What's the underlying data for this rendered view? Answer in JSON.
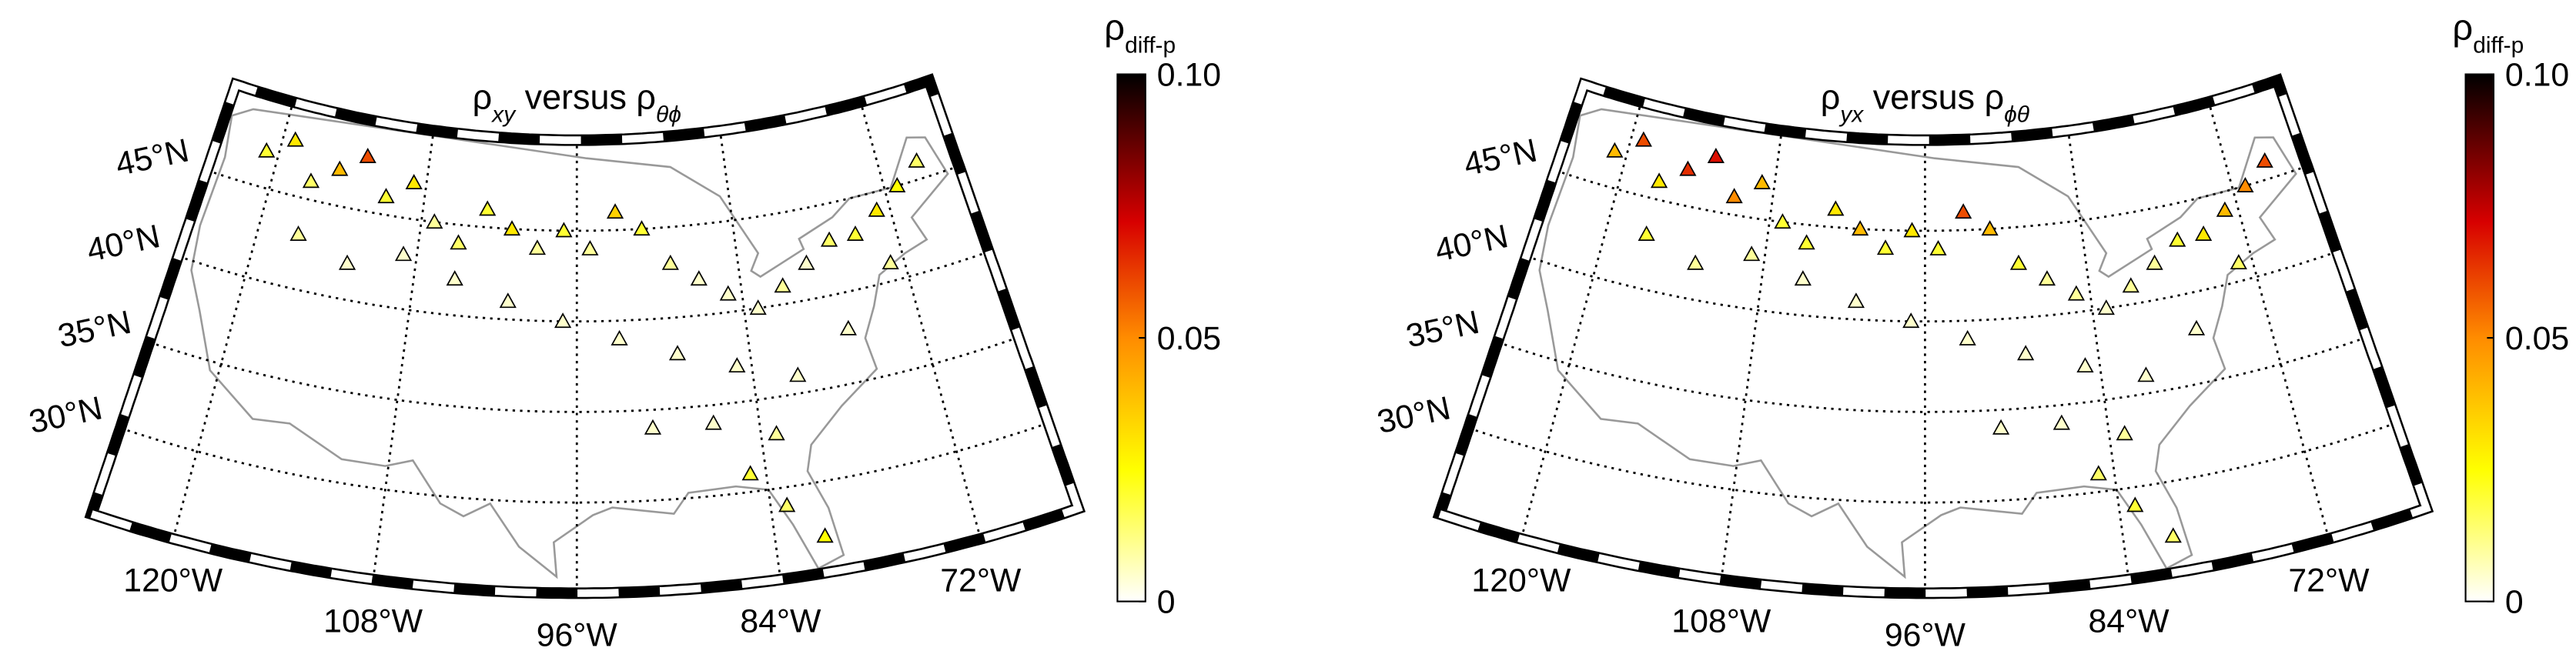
{
  "panels": [
    {
      "title": [
        "ρ",
        "xy",
        " versus ρ",
        "θϕ"
      ],
      "lonlim": [
        -125,
        -66
      ],
      "latlim": [
        25,
        50
      ],
      "lon_ticks": [
        {
          "value": -120,
          "label": "120°W"
        },
        {
          "value": -108,
          "label": "108°W"
        },
        {
          "value": -96,
          "label": "96°W"
        },
        {
          "value": -84,
          "label": "84°W"
        },
        {
          "value": -72,
          "label": "72°W"
        }
      ],
      "lat_ticks": [
        {
          "value": 30,
          "label": "30°N"
        },
        {
          "value": 35,
          "label": "35°N"
        },
        {
          "value": 40,
          "label": "40°N"
        },
        {
          "value": 45,
          "label": "45°N"
        }
      ],
      "colorbar": {
        "label": [
          "ρ",
          "diff-p"
        ],
        "clim": [
          0,
          0.1
        ],
        "ticks": [
          0,
          0.05,
          {
            "value": 0.1,
            "label": "0.10"
          }
        ]
      },
      "stations": {
        "lon": [
          -121,
          -119,
          -117,
          -115,
          -113,
          -111,
          -109,
          -107,
          -105,
          -103,
          -101,
          -99,
          -97,
          -95,
          -93,
          -91,
          -89,
          -87,
          -85,
          -83,
          -81,
          -79,
          -77,
          -75,
          -73,
          -71,
          -69,
          -117,
          -113,
          -109,
          -105,
          -101,
          -97,
          -93,
          -89,
          -85,
          -81,
          -77,
          -73,
          -91,
          -87,
          -83,
          -85,
          -83,
          -81
        ],
        "lat": [
          47,
          48,
          46,
          47,
          48,
          46,
          47,
          45,
          44,
          46,
          45,
          44,
          45,
          44,
          46,
          45,
          43,
          42,
          41,
          40,
          41,
          42,
          43,
          43,
          44,
          45,
          46,
          43,
          42,
          43,
          42,
          41,
          40,
          39,
          38,
          37,
          36,
          38,
          41,
          34,
          34,
          33,
          31,
          29,
          27
        ],
        "rho": [
          0.02,
          0.03,
          0.015,
          0.04,
          0.06,
          0.02,
          0.03,
          0.01,
          0.015,
          0.02,
          0.03,
          0.01,
          0.02,
          0.01,
          0.035,
          0.02,
          0.01,
          0.005,
          0.005,
          0.005,
          0.01,
          0.005,
          0.015,
          0.02,
          0.03,
          0.025,
          0.015,
          0.01,
          0.005,
          0.005,
          0.005,
          0.005,
          0.005,
          0.005,
          0.005,
          0.005,
          0.005,
          0.005,
          0.01,
          0.005,
          0.005,
          0.01,
          0.02,
          0.015,
          0.025
        ]
      }
    },
    {
      "title": [
        "ρ",
        "yx",
        " versus ρ",
        "ϕθ"
      ],
      "lonlim": [
        -125,
        -66
      ],
      "latlim": [
        25,
        50
      ],
      "lon_ticks": [
        {
          "value": -120,
          "label": "120°W"
        },
        {
          "value": -108,
          "label": "108°W"
        },
        {
          "value": -96,
          "label": "96°W"
        },
        {
          "value": -84,
          "label": "84°W"
        },
        {
          "value": -72,
          "label": "72°W"
        }
      ],
      "lat_ticks": [
        {
          "value": 30,
          "label": "30°N"
        },
        {
          "value": 35,
          "label": "35°N"
        },
        {
          "value": 40,
          "label": "40°N"
        },
        {
          "value": 45,
          "label": "45°N"
        }
      ],
      "colorbar": {
        "label": [
          "ρ",
          "diff-p"
        ],
        "clim": [
          0,
          0.1
        ],
        "ticks": [
          0,
          0.05,
          {
            "value": 0.1,
            "label": "0.10"
          }
        ]
      },
      "stations": {
        "lon": [
          -121,
          -119,
          -117,
          -115,
          -113,
          -111,
          -109,
          -107,
          -105,
          -103,
          -101,
          -99,
          -97,
          -95,
          -93,
          -91,
          -89,
          -87,
          -85,
          -83,
          -81,
          -79,
          -77,
          -75,
          -73,
          -71,
          -69,
          -117,
          -113,
          -109,
          -105,
          -101,
          -97,
          -93,
          -89,
          -85,
          -81,
          -77,
          -73,
          -91,
          -87,
          -83,
          -85,
          -83,
          -81
        ],
        "lat": [
          47,
          48,
          46,
          47,
          48,
          46,
          47,
          45,
          44,
          46,
          45,
          44,
          45,
          44,
          46,
          45,
          43,
          42,
          41,
          40,
          41,
          42,
          43,
          43,
          44,
          45,
          46,
          43,
          42,
          43,
          42,
          41,
          40,
          39,
          38,
          37,
          36,
          38,
          41,
          34,
          34,
          33,
          31,
          29,
          27
        ],
        "rho": [
          0.04,
          0.06,
          0.03,
          0.065,
          0.07,
          0.05,
          0.04,
          0.02,
          0.02,
          0.03,
          0.04,
          0.02,
          0.03,
          0.02,
          0.06,
          0.04,
          0.02,
          0.01,
          0.01,
          0.005,
          0.01,
          0.01,
          0.02,
          0.03,
          0.04,
          0.05,
          0.06,
          0.02,
          0.01,
          0.01,
          0.005,
          0.005,
          0.005,
          0.005,
          0.005,
          0.005,
          0.005,
          0.005,
          0.015,
          0.005,
          0.005,
          0.01,
          0.015,
          0.02,
          0.015
        ]
      }
    }
  ]
}
